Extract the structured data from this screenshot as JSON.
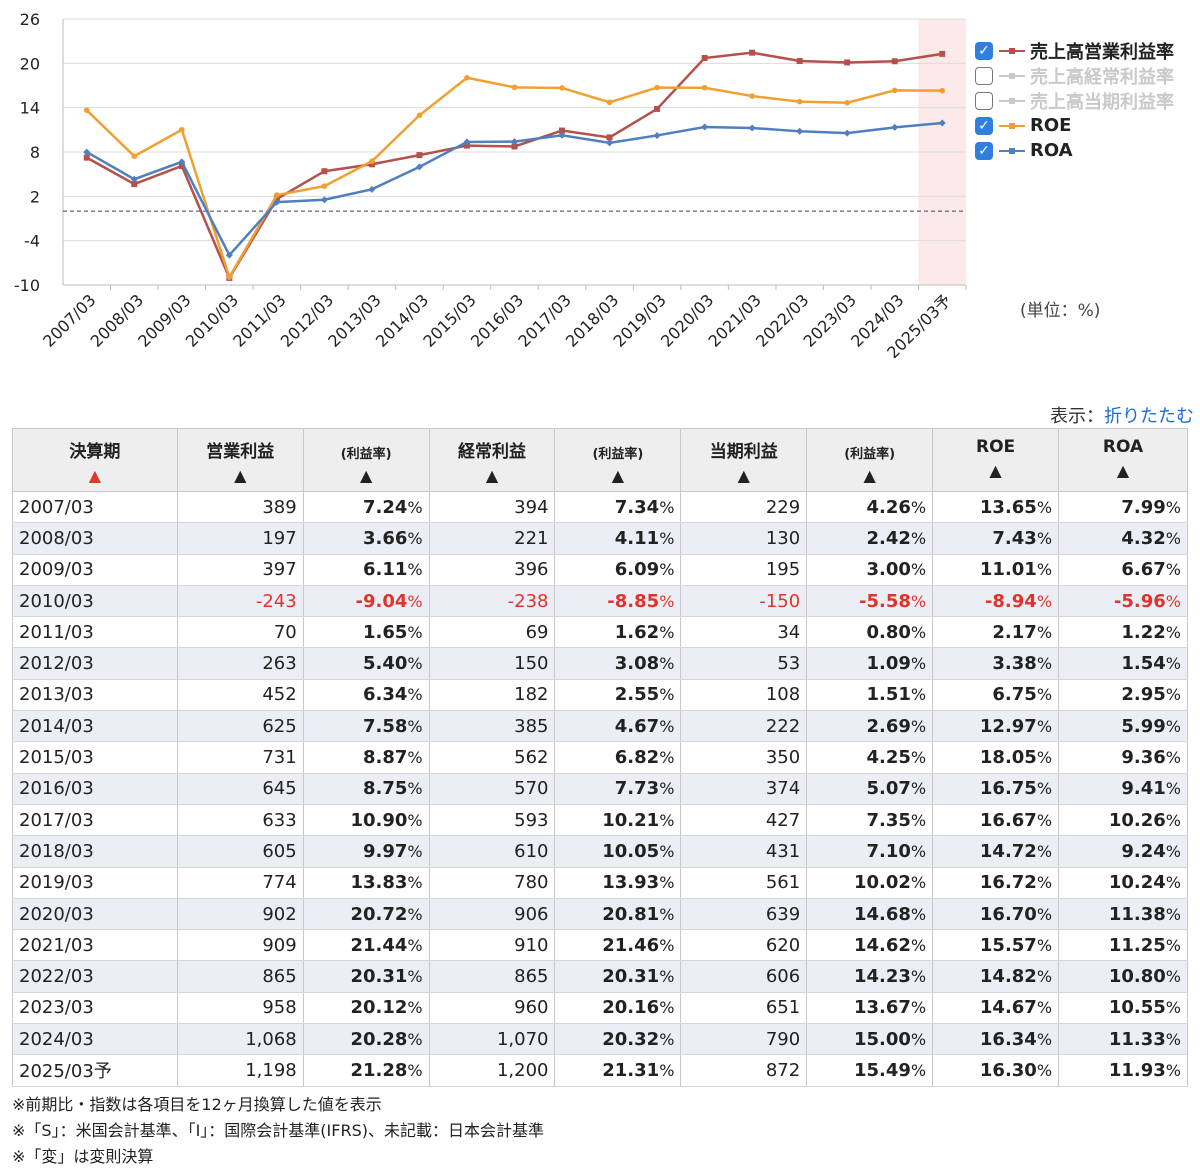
{
  "chart_data": {
    "type": "line",
    "categories": [
      "2007/03",
      "2008/03",
      "2009/03",
      "2010/03",
      "2011/03",
      "2012/03",
      "2013/03",
      "2014/03",
      "2015/03",
      "2016/03",
      "2017/03",
      "2018/03",
      "2019/03",
      "2020/03",
      "2021/03",
      "2022/03",
      "2023/03",
      "2024/03",
      "2025/03予"
    ],
    "series": [
      {
        "name": "売上高営業利益率",
        "color": "#b5504a",
        "checked": true,
        "values": [
          7.24,
          3.66,
          6.11,
          -9.04,
          1.65,
          5.4,
          6.34,
          7.58,
          8.87,
          8.75,
          10.9,
          9.97,
          13.83,
          20.72,
          21.44,
          20.31,
          20.12,
          20.28,
          21.28
        ]
      },
      {
        "name": "売上高経常利益率",
        "color": "#c9c9c9",
        "checked": false,
        "values": [
          7.34,
          4.11,
          6.09,
          -8.85,
          1.62,
          3.08,
          2.55,
          4.67,
          6.82,
          7.73,
          10.21,
          10.05,
          13.93,
          20.81,
          21.46,
          20.31,
          20.16,
          20.32,
          21.31
        ]
      },
      {
        "name": "売上高当期利益率",
        "color": "#c9c9c9",
        "checked": false,
        "values": [
          4.26,
          2.42,
          3.0,
          -5.58,
          0.8,
          1.09,
          1.51,
          2.69,
          4.25,
          5.07,
          7.35,
          7.1,
          10.02,
          14.68,
          14.62,
          14.23,
          13.67,
          15.0,
          15.49
        ]
      },
      {
        "name": "ROE",
        "color": "#f0a030",
        "checked": true,
        "values": [
          13.65,
          7.43,
          11.01,
          -8.94,
          2.17,
          3.38,
          6.75,
          12.97,
          18.05,
          16.75,
          16.67,
          14.72,
          16.72,
          16.7,
          15.57,
          14.82,
          14.67,
          16.34,
          16.3
        ]
      },
      {
        "name": "ROA",
        "color": "#4f7fbf",
        "checked": true,
        "values": [
          7.99,
          4.32,
          6.67,
          -5.96,
          1.22,
          1.54,
          2.95,
          5.99,
          9.36,
          9.41,
          10.26,
          9.24,
          10.24,
          11.38,
          11.25,
          10.8,
          10.55,
          11.33,
          11.93
        ]
      }
    ],
    "yticks": [
      "26",
      "20",
      "14",
      "8",
      "2",
      "-4",
      "-10"
    ],
    "ylim": [
      -10,
      26
    ],
    "zero_line": true,
    "forecast_highlight": "2025/03予",
    "unit": "(単位：%)"
  },
  "display": {
    "label": "表示：",
    "link": "折りたたむ"
  },
  "table": {
    "headers": {
      "period": "決算期",
      "op": "営業利益",
      "rate": "(利益率)",
      "ord": "経常利益",
      "net": "当期利益",
      "roe": "ROE",
      "roa": "ROA"
    },
    "sort_up": "▲",
    "rows": [
      {
        "p": "2007/03",
        "op": "389",
        "opr": "7.24",
        "ord": "394",
        "ordr": "7.34",
        "net": "229",
        "netr": "4.26",
        "roe": "13.65",
        "roa": "7.99"
      },
      {
        "p": "2008/03",
        "op": "197",
        "opr": "3.66",
        "ord": "221",
        "ordr": "4.11",
        "net": "130",
        "netr": "2.42",
        "roe": "7.43",
        "roa": "4.32"
      },
      {
        "p": "2009/03",
        "op": "397",
        "opr": "6.11",
        "ord": "396",
        "ordr": "6.09",
        "net": "195",
        "netr": "3.00",
        "roe": "11.01",
        "roa": "6.67"
      },
      {
        "p": "2010/03",
        "op": "-243",
        "opr": "-9.04",
        "ord": "-238",
        "ordr": "-8.85",
        "net": "-150",
        "netr": "-5.58",
        "roe": "-8.94",
        "roa": "-5.96"
      },
      {
        "p": "2011/03",
        "op": "70",
        "opr": "1.65",
        "ord": "69",
        "ordr": "1.62",
        "net": "34",
        "netr": "0.80",
        "roe": "2.17",
        "roa": "1.22"
      },
      {
        "p": "2012/03",
        "op": "263",
        "opr": "5.40",
        "ord": "150",
        "ordr": "3.08",
        "net": "53",
        "netr": "1.09",
        "roe": "3.38",
        "roa": "1.54"
      },
      {
        "p": "2013/03",
        "op": "452",
        "opr": "6.34",
        "ord": "182",
        "ordr": "2.55",
        "net": "108",
        "netr": "1.51",
        "roe": "6.75",
        "roa": "2.95"
      },
      {
        "p": "2014/03",
        "op": "625",
        "opr": "7.58",
        "ord": "385",
        "ordr": "4.67",
        "net": "222",
        "netr": "2.69",
        "roe": "12.97",
        "roa": "5.99"
      },
      {
        "p": "2015/03",
        "op": "731",
        "opr": "8.87",
        "ord": "562",
        "ordr": "6.82",
        "net": "350",
        "netr": "4.25",
        "roe": "18.05",
        "roa": "9.36"
      },
      {
        "p": "2016/03",
        "op": "645",
        "opr": "8.75",
        "ord": "570",
        "ordr": "7.73",
        "net": "374",
        "netr": "5.07",
        "roe": "16.75",
        "roa": "9.41"
      },
      {
        "p": "2017/03",
        "op": "633",
        "opr": "10.90",
        "ord": "593",
        "ordr": "10.21",
        "net": "427",
        "netr": "7.35",
        "roe": "16.67",
        "roa": "10.26"
      },
      {
        "p": "2018/03",
        "op": "605",
        "opr": "9.97",
        "ord": "610",
        "ordr": "10.05",
        "net": "431",
        "netr": "7.10",
        "roe": "14.72",
        "roa": "9.24"
      },
      {
        "p": "2019/03",
        "op": "774",
        "opr": "13.83",
        "ord": "780",
        "ordr": "13.93",
        "net": "561",
        "netr": "10.02",
        "roe": "16.72",
        "roa": "10.24"
      },
      {
        "p": "2020/03",
        "op": "902",
        "opr": "20.72",
        "ord": "906",
        "ordr": "20.81",
        "net": "639",
        "netr": "14.68",
        "roe": "16.70",
        "roa": "11.38"
      },
      {
        "p": "2021/03",
        "op": "909",
        "opr": "21.44",
        "ord": "910",
        "ordr": "21.46",
        "net": "620",
        "netr": "14.62",
        "roe": "15.57",
        "roa": "11.25"
      },
      {
        "p": "2022/03",
        "op": "865",
        "opr": "20.31",
        "ord": "865",
        "ordr": "20.31",
        "net": "606",
        "netr": "14.23",
        "roe": "14.82",
        "roa": "10.80"
      },
      {
        "p": "2023/03",
        "op": "958",
        "opr": "20.12",
        "ord": "960",
        "ordr": "20.16",
        "net": "651",
        "netr": "13.67",
        "roe": "14.67",
        "roa": "10.55"
      },
      {
        "p": "2024/03",
        "op": "1,068",
        "opr": "20.28",
        "ord": "1,070",
        "ordr": "20.32",
        "net": "790",
        "netr": "15.00",
        "roe": "16.34",
        "roa": "11.33"
      },
      {
        "p": "2025/03予",
        "op": "1,198",
        "opr": "21.28",
        "ord": "1,200",
        "ordr": "21.31",
        "net": "872",
        "netr": "15.49",
        "roe": "16.30",
        "roa": "11.93"
      }
    ]
  },
  "footnotes": [
    "※前期比・指数は各項目を12ヶ月換算した値を表示",
    "※「S」：米国会計基準、「I」：国際会計基準(IFRS)、未記載：日本会計基準",
    "※「変」は変則決算"
  ]
}
